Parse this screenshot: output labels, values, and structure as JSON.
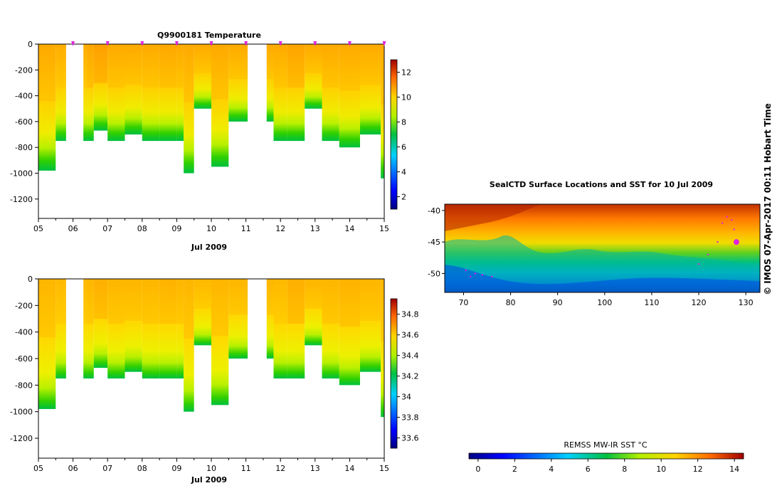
{
  "chart_data": [
    {
      "type": "heatmap",
      "name": "temperature-section",
      "title": "Q9900181  Temperature",
      "xlabel": "Jul 2009",
      "ylabel": "",
      "x_tick_labels": [
        "05",
        "06",
        "07",
        "08",
        "09",
        "10",
        "11",
        "12",
        "13",
        "14",
        "15"
      ],
      "x_range_days": [
        5,
        15
      ],
      "y_ticks": [
        0,
        -200,
        -400,
        -600,
        -800,
        -1000,
        -1200
      ],
      "ylim": [
        -1350,
        0
      ],
      "colorbar": {
        "ticks": [
          2,
          4,
          6,
          8,
          10,
          12
        ],
        "range": [
          1,
          13
        ]
      },
      "variable": "temperature",
      "profiles": [
        {
          "day": 5.0,
          "depth": 980,
          "surface": 9.5
        },
        {
          "day": 5.5,
          "depth": 750,
          "surface": 9.0
        },
        {
          "day": 6.4,
          "depth": 750,
          "surface": 10.0
        },
        {
          "day": 6.6,
          "depth": 670,
          "surface": 11.0
        },
        {
          "day": 7.0,
          "depth": 750,
          "surface": 9.5
        },
        {
          "day": 7.5,
          "depth": 700,
          "surface": 9.5
        },
        {
          "day": 8.0,
          "depth": 750,
          "surface": 9.3
        },
        {
          "day": 8.5,
          "depth": 750,
          "surface": 9.8
        },
        {
          "day": 9.0,
          "depth": 750,
          "surface": 9.5
        },
        {
          "day": 9.2,
          "depth": 1000,
          "surface": 9.5
        },
        {
          "day": 9.5,
          "depth": 500,
          "surface": 9.3
        },
        {
          "day": 10.0,
          "depth": 950,
          "surface": 9.5
        },
        {
          "day": 10.5,
          "depth": 600,
          "surface": 9.3
        },
        {
          "day": 11.8,
          "depth": 750,
          "surface": 9.3
        },
        {
          "day": 12.2,
          "depth": 750,
          "surface": 10.2
        },
        {
          "day": 12.7,
          "depth": 500,
          "surface": 9.5
        },
        {
          "day": 13.2,
          "depth": 750,
          "surface": 9.5
        },
        {
          "day": 13.7,
          "depth": 800,
          "surface": 9.5
        },
        {
          "day": 14.3,
          "depth": 700,
          "surface": 9.3
        },
        {
          "day": 14.9,
          "depth": 1040,
          "surface": 9.5
        }
      ],
      "gaps_days": [
        [
          5.8,
          6.3
        ],
        [
          11.05,
          11.6
        ]
      ],
      "surface_markers_days": [
        6,
        7,
        8,
        9,
        10,
        11,
        12,
        13,
        14,
        15
      ]
    },
    {
      "type": "heatmap",
      "name": "salinity-section",
      "title": "",
      "xlabel": "Jul 2009",
      "ylabel": "",
      "x_tick_labels": [
        "05",
        "06",
        "07",
        "08",
        "09",
        "10",
        "11",
        "12",
        "13",
        "14",
        "15"
      ],
      "x_range_days": [
        5,
        15
      ],
      "y_ticks": [
        0,
        -200,
        -400,
        -600,
        -800,
        -1000,
        -1200
      ],
      "ylim": [
        -1350,
        0
      ],
      "colorbar": {
        "ticks": [
          "33.6",
          "33.8",
          "34",
          "34.2",
          "34.4",
          "34.6",
          "34.8"
        ],
        "range": [
          33.5,
          34.95
        ]
      },
      "variable": "salinity",
      "profiles": [
        {
          "day": 5.0,
          "depth": 980,
          "surface": 34.55
        },
        {
          "day": 5.5,
          "depth": 750,
          "surface": 34.5
        },
        {
          "day": 6.4,
          "depth": 750,
          "surface": 34.55
        },
        {
          "day": 6.6,
          "depth": 670,
          "surface": 34.65
        },
        {
          "day": 7.0,
          "depth": 750,
          "surface": 34.55
        },
        {
          "day": 7.5,
          "depth": 700,
          "surface": 34.55
        },
        {
          "day": 8.0,
          "depth": 750,
          "surface": 34.55
        },
        {
          "day": 8.5,
          "depth": 750,
          "surface": 34.6
        },
        {
          "day": 9.0,
          "depth": 750,
          "surface": 34.55
        },
        {
          "day": 9.2,
          "depth": 1000,
          "surface": 34.55
        },
        {
          "day": 9.5,
          "depth": 500,
          "surface": 34.5
        },
        {
          "day": 10.0,
          "depth": 950,
          "surface": 34.55
        },
        {
          "day": 10.5,
          "depth": 600,
          "surface": 34.55
        },
        {
          "day": 11.8,
          "depth": 750,
          "surface": 34.5
        },
        {
          "day": 12.2,
          "depth": 750,
          "surface": 34.65
        },
        {
          "day": 12.7,
          "depth": 500,
          "surface": 34.55
        },
        {
          "day": 13.2,
          "depth": 750,
          "surface": 34.55
        },
        {
          "day": 13.7,
          "depth": 800,
          "surface": 34.6
        },
        {
          "day": 14.3,
          "depth": 700,
          "surface": 34.55
        },
        {
          "day": 14.9,
          "depth": 1040,
          "surface": 34.55
        }
      ],
      "gaps_days": [
        [
          5.8,
          6.3
        ],
        [
          11.05,
          11.6
        ]
      ]
    },
    {
      "type": "heatmap",
      "name": "sst-map",
      "title": "SealCTD Surface Locations and SST for 10 Jul 2009",
      "x_ticks": [
        70,
        80,
        90,
        100,
        110,
        120,
        130
      ],
      "y_ticks": [
        -40,
        -45,
        -50
      ],
      "xlim": [
        66,
        133
      ],
      "ylim": [
        -53,
        -39
      ],
      "colorbar": {
        "title": "REMSS MW-IR SST °C",
        "ticks": [
          0,
          2,
          4,
          6,
          8,
          10,
          12,
          14
        ],
        "range": [
          -0.5,
          14.5
        ]
      },
      "track_points": [
        [
          70.5,
          -49.5
        ],
        [
          71.5,
          -50.5
        ],
        [
          72.5,
          -50.0
        ],
        [
          74.0,
          -50.2
        ],
        [
          76.0,
          -50.5
        ],
        [
          120.0,
          -48.5
        ],
        [
          122.0,
          -47.0
        ],
        [
          124.0,
          -45.0
        ],
        [
          125.0,
          -42.0
        ],
        [
          126.0,
          -41.0
        ],
        [
          127.0,
          -41.5
        ],
        [
          127.5,
          -43.0
        ],
        [
          128.0,
          -45.0
        ]
      ],
      "track_highlight": [
        128.0,
        -45.0
      ]
    }
  ],
  "watermark": "© IMOS 07-Apr-2017 00:11 Hobart Time"
}
